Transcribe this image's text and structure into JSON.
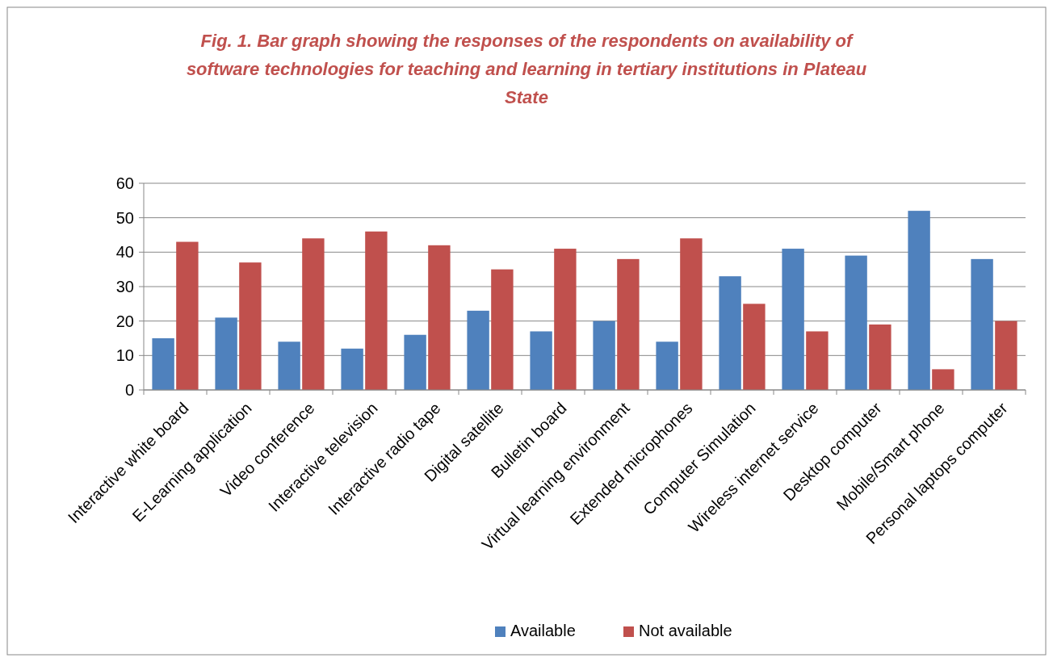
{
  "chart_data": {
    "type": "bar",
    "title": "Fig. 1. Bar graph showing the responses of the respondents on availability of software technologies for teaching and learning in tertiary institutions in Plateau State",
    "categories": [
      "Interactive white board",
      "E-Learning application",
      "Video conference",
      "Interactive television",
      "Interactive radio tape",
      "Digital satellite",
      "Bulletin board",
      "Virtual learning environment",
      "Extended microphones",
      "Computer Simulation",
      "Wireless internet service",
      "Desktop computer",
      "Mobile/Smart phone",
      "Personal laptops computer"
    ],
    "series": [
      {
        "name": "Available",
        "color": "#4f81bd",
        "values": [
          15,
          21,
          14,
          12,
          16,
          23,
          17,
          20,
          14,
          33,
          41,
          39,
          52,
          38
        ]
      },
      {
        "name": "Not available",
        "color": "#c0504d",
        "values": [
          43,
          37,
          44,
          46,
          42,
          35,
          41,
          38,
          44,
          25,
          17,
          19,
          6,
          20
        ]
      }
    ],
    "ylim": [
      0,
      60
    ],
    "yticks": [
      0,
      10,
      20,
      30,
      40,
      50,
      60
    ],
    "grid": "y",
    "legend": "bottom"
  }
}
